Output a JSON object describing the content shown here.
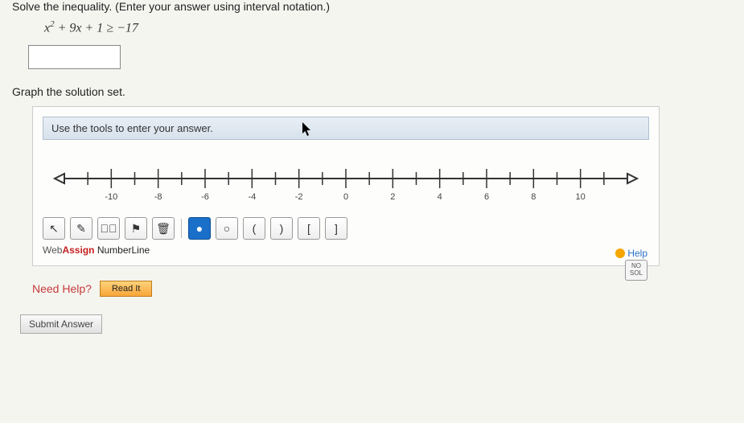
{
  "problem": {
    "instruction": "Solve the inequality. (Enter your answer using interval notation.)",
    "expression_lhs": "x",
    "expression_exp": "2",
    "expression_mid": " + 9x + 1 ",
    "expression_op": "≥",
    "expression_rhs": " −17"
  },
  "graph": {
    "label": "Graph the solution set.",
    "hint": "Use the tools to enter your answer.",
    "axis": {
      "min": -12,
      "max": 12,
      "tick_step": 1,
      "labels": [
        "-10",
        "-8",
        "-6",
        "-4",
        "-2",
        "0",
        "2",
        "4",
        "6",
        "8",
        "10"
      ],
      "label_step": 2,
      "line_color": "#333333",
      "tick_color": "#333333",
      "label_color": "#444444",
      "label_fontsize": 11
    },
    "toolbar": {
      "buttons": [
        {
          "name": "pointer",
          "glyph": "↖",
          "active": false
        },
        {
          "name": "pencil",
          "glyph": "✎",
          "active": false
        },
        {
          "name": "erase",
          "glyph": "✎⃪",
          "active": false
        },
        {
          "name": "flag",
          "glyph": "⚑",
          "active": false
        },
        {
          "name": "trash",
          "glyph": "🗑",
          "active": false
        }
      ],
      "points": [
        {
          "name": "closed-point",
          "glyph": "●",
          "active": true
        },
        {
          "name": "open-point",
          "glyph": "○",
          "active": false
        }
      ],
      "brackets": [
        {
          "name": "open-paren-left",
          "glyph": "(",
          "active": false
        },
        {
          "name": "open-paren-right",
          "glyph": ")",
          "active": false
        },
        {
          "name": "closed-bracket-left",
          "glyph": "[",
          "active": false
        },
        {
          "name": "closed-bracket-right",
          "glyph": "]",
          "active": false
        }
      ]
    },
    "nosol_label_top": "NO",
    "nosol_label_bottom": "SOL",
    "brand_web": "Web",
    "brand_assign": "Assign",
    "brand_product": " NumberLine",
    "help_label": "Help"
  },
  "help": {
    "need_help_label": "Need Help?",
    "read_it_label": "Read It"
  },
  "submit": {
    "label": "Submit Answer"
  },
  "colors": {
    "page_bg": "#f5f5f0",
    "panel_bg": "#fdfdfb",
    "hint_bg_top": "#e8eef5",
    "hint_bg_bottom": "#d8e2ec",
    "accent_blue": "#1a6fc9",
    "accent_red": "#c53a3a",
    "accent_orange": "#f8a63a"
  }
}
